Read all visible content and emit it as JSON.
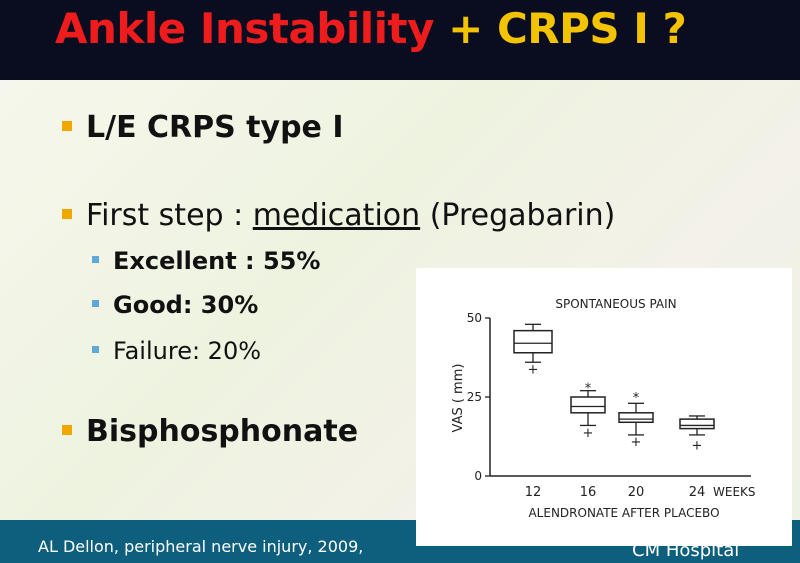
{
  "title": {
    "part1": "Ankle Instability",
    "part2": "+ CRPS I ?"
  },
  "bullets": {
    "b1": "L/E CRPS type I",
    "b2_prefix": "First step : ",
    "b2_link": "medication",
    "b2_suffix": " (Pregabarin)",
    "sub": [
      {
        "label": "Excellent : 55%"
      },
      {
        "label": "Good: 30%"
      },
      {
        "label": "Failure: 20%"
      }
    ],
    "b3": "Bisphosphonate"
  },
  "footer": {
    "citation": "AL Dellon, peripheral nerve injury, 2009,",
    "logo": "CM Hospital"
  },
  "colors": {
    "title_red": "#ee1c1c",
    "title_yellow": "#f3c200",
    "footer_bg": "#0e5f7e",
    "bullet": "#f0a800",
    "sub_bullet": "#5fa8d8"
  },
  "chart_data": {
    "type": "box",
    "title": "SPONTANEOUS PAIN",
    "ylabel": "VAS ( mm)",
    "xlabel": "ALENDRONATE AFTER PLACEBO",
    "x_unit": "WEEKS",
    "ylim": [
      0,
      50
    ],
    "yticks": [
      "0",
      "25",
      "50"
    ],
    "categories": [
      "12",
      "16",
      "20",
      "24"
    ],
    "boxes": [
      {
        "x": "12",
        "min": 36,
        "q1": 39,
        "median": 42,
        "q3": 46,
        "max": 48,
        "outliers": [
          34
        ]
      },
      {
        "x": "16",
        "min": 16,
        "q1": 20,
        "median": 22,
        "q3": 25,
        "max": 27,
        "outliers": [
          14,
          28
        ]
      },
      {
        "x": "20",
        "min": 13,
        "q1": 17,
        "median": 18,
        "q3": 20,
        "max": 23,
        "outliers": [
          11,
          25
        ]
      },
      {
        "x": "24",
        "min": 13,
        "q1": 15,
        "median": 16,
        "q3": 18,
        "max": 19,
        "outliers": [
          10
        ]
      }
    ],
    "grid": false
  }
}
